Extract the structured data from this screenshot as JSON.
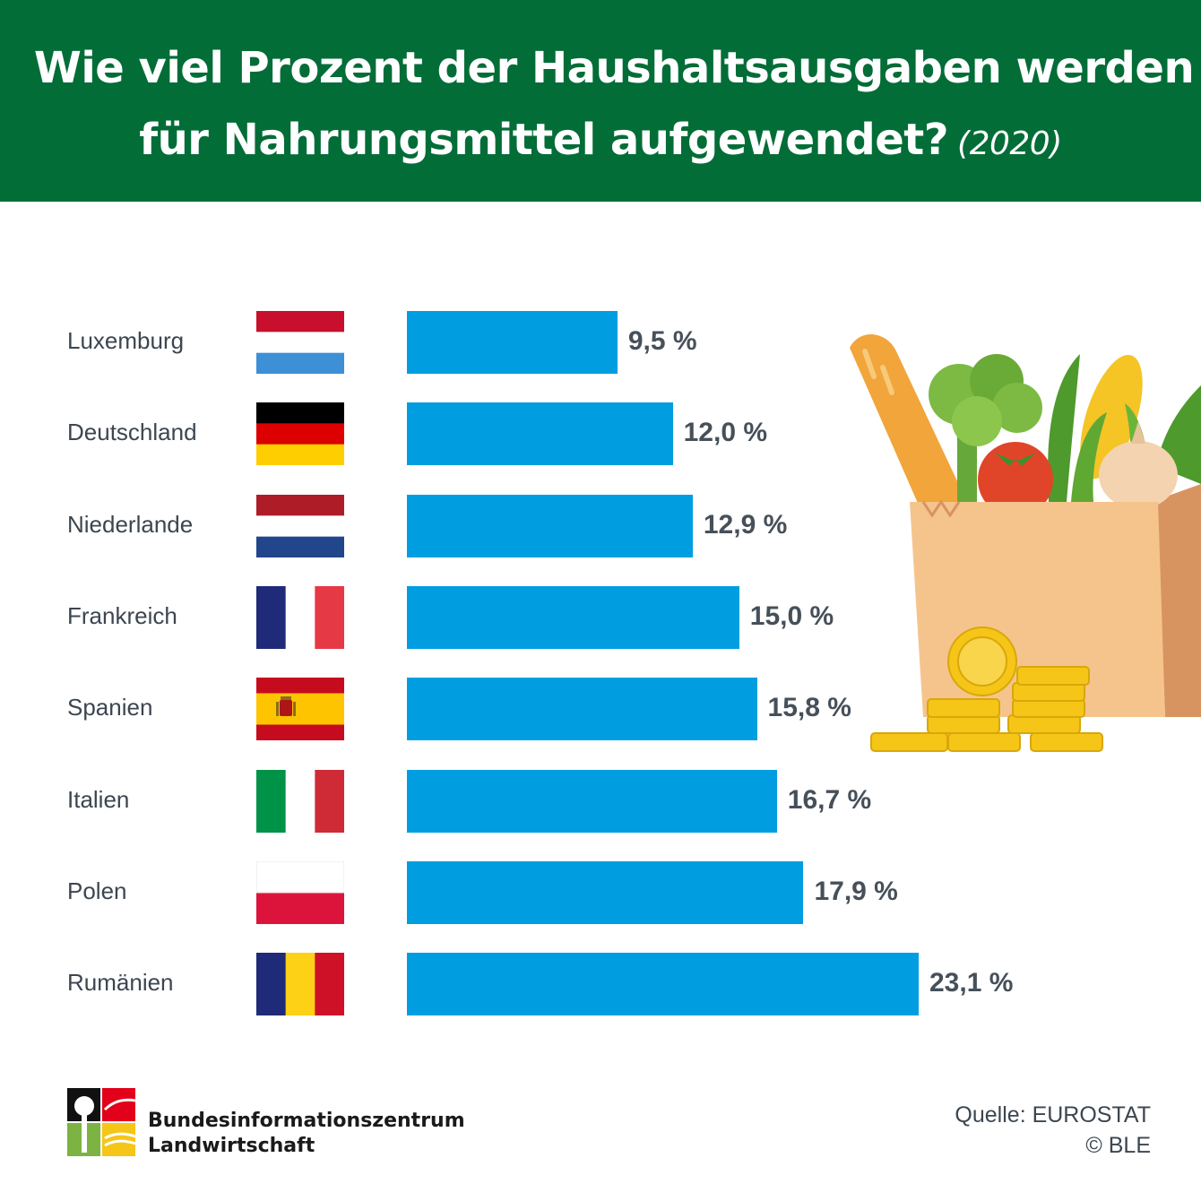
{
  "header": {
    "title_line1": "Wie viel Prozent der Haushaltsausgaben werden",
    "title_line2": "für Nahrungsmittel aufgewendet?",
    "year": "(2020)",
    "background_color": "#036d37"
  },
  "chart_data": {
    "type": "bar",
    "orientation": "horizontal",
    "categories": [
      "Luxemburg",
      "Deutschland",
      "Niederlande",
      "Frankreich",
      "Spanien",
      "Italien",
      "Polen",
      "Rumänien"
    ],
    "values": [
      9.5,
      12.0,
      12.9,
      15.0,
      15.8,
      16.7,
      17.9,
      23.1
    ],
    "value_labels": [
      "9,5 %",
      "12,0 %",
      "12,9 %",
      "15,0 %",
      "15,8 %",
      "16,7 %",
      "17,9 %",
      "23,1 %"
    ],
    "flags": [
      "luxembourg-flag",
      "germany-flag",
      "netherlands-flag",
      "france-flag",
      "spain-flag",
      "italy-flag",
      "poland-flag",
      "romania-flag"
    ],
    "bar_color": "#009ee0",
    "grid": false
  },
  "illustration": {
    "icon": "grocery-bag-with-coins-illustration"
  },
  "footer": {
    "org_name_line1": "Bundesinformationszentrum",
    "org_name_line2": "Landwirtschaft",
    "source": "Quelle: EUROSTAT",
    "copyright": "© BLE",
    "logo_icon": "bzl-logo-icon"
  }
}
